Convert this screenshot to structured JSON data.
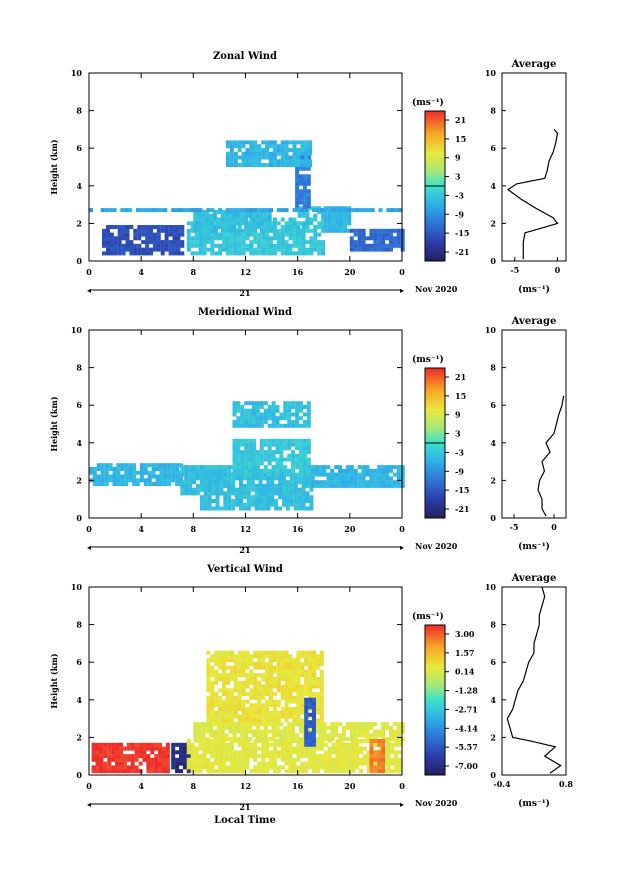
{
  "panels": [
    {
      "title": "Zonal Wind",
      "ylabel": "Height (km)",
      "y_ticks": [
        "0",
        "2",
        "4",
        "6",
        "8",
        "10"
      ],
      "x_ticks": [
        "0",
        "4",
        "8",
        "12",
        "16",
        "20",
        "0"
      ],
      "day_label": "21",
      "date_label": "Nov 2020",
      "cb_unit": "(ms⁻¹)",
      "cb_ticks": [
        "21",
        "15",
        "9",
        "3",
        "-3",
        "-9",
        "-15",
        "-21"
      ],
      "avg_title": "Average",
      "avg_xticks": [
        "-5",
        "0"
      ],
      "avg_xlabel": "(ms⁻¹)",
      "avg_yticks": [
        "0",
        "2",
        "4",
        "6",
        "8",
        "10"
      ]
    },
    {
      "title": "Meridional Wind",
      "ylabel": "Height (km)",
      "y_ticks": [
        "0",
        "2",
        "4",
        "6",
        "8",
        "10"
      ],
      "x_ticks": [
        "0",
        "4",
        "8",
        "12",
        "16",
        "20",
        "0"
      ],
      "day_label": "21",
      "date_label": "Nov 2020",
      "cb_unit": "(ms⁻¹)",
      "cb_ticks": [
        "21",
        "15",
        "9",
        "3",
        "-3",
        "-9",
        "-15",
        "-21"
      ],
      "avg_title": "Average",
      "avg_xticks": [
        "-5",
        "0"
      ],
      "avg_xlabel": "(ms⁻¹)",
      "avg_yticks": [
        "0",
        "2",
        "4",
        "6",
        "8",
        "10"
      ]
    },
    {
      "title": "Vertical Wind",
      "ylabel": "Height (km)",
      "y_ticks": [
        "0",
        "2",
        "4",
        "6",
        "8",
        "10"
      ],
      "x_ticks": [
        "0",
        "4",
        "8",
        "12",
        "16",
        "20",
        "0"
      ],
      "day_label": "21",
      "date_label": "Nov 2020",
      "xlabel": "Local Time",
      "cb_unit": "(ms⁻¹)",
      "cb_ticks": [
        "3.00",
        "1.57",
        "0.14",
        "-1.28",
        "-2.71",
        "-4.14",
        "-5.57",
        "-7.00"
      ],
      "avg_title": "Average",
      "avg_xticks": [
        "-0.4",
        "0.8"
      ],
      "avg_xlabel": "(ms⁻¹)",
      "avg_yticks": [
        "0",
        "2",
        "4",
        "6",
        "8",
        "10"
      ]
    }
  ],
  "chart_data": [
    {
      "type": "heatmap",
      "title": "Zonal Wind",
      "xlabel": "",
      "ylabel": "Height (km)",
      "xlim": [
        0,
        24
      ],
      "ylim": [
        0,
        10
      ],
      "colorbar_range": [
        -24,
        24
      ],
      "blocks": [
        {
          "t0": 1,
          "t1": 7,
          "h0": 0.3,
          "h1": 1.7,
          "v": -16
        },
        {
          "t0": 7.5,
          "t1": 16,
          "h0": 0.3,
          "h1": 2.3,
          "v": -3
        },
        {
          "t0": 8,
          "t1": 14,
          "h0": 1.5,
          "h1": 2.6,
          "v": -4
        },
        {
          "t0": 16,
          "t1": 18,
          "h0": 0.3,
          "h1": 2.8,
          "v": -3
        },
        {
          "t0": 18,
          "t1": 20,
          "h0": 1.5,
          "h1": 2.8,
          "v": -5
        },
        {
          "t0": 20,
          "t1": 24,
          "h0": 0.5,
          "h1": 1.6,
          "v": -13
        },
        {
          "t0": 0,
          "t1": 24,
          "h0": 2.6,
          "h1": 2.8,
          "v": -7
        },
        {
          "t0": 15.8,
          "t1": 16.8,
          "h0": 2.8,
          "h1": 6.0,
          "v": -11
        },
        {
          "t0": 10.5,
          "t1": 17,
          "h0": 5.0,
          "h1": 6.3,
          "v": -5
        }
      ],
      "profile": {
        "heights": [
          0.1,
          0.5,
          1.0,
          1.5,
          1.8,
          2.0,
          2.3,
          2.8,
          3.3,
          3.8,
          4.1,
          4.4,
          4.8,
          5.3,
          5.8,
          6.3,
          6.8,
          7.0
        ],
        "values": [
          -4,
          -4,
          -4,
          -3.8,
          -1.5,
          0,
          -0.5,
          -2.5,
          -4.3,
          -5.8,
          -4.8,
          -1.5,
          -1.2,
          -1,
          -0.5,
          -0.2,
          0,
          -0.4
        ]
      },
      "profile_xlim": [
        -6.5,
        1
      ]
    },
    {
      "type": "heatmap",
      "title": "Meridional Wind",
      "xlabel": "",
      "ylabel": "Height (km)",
      "xlim": [
        0,
        24
      ],
      "ylim": [
        0,
        10
      ],
      "colorbar_range": [
        -24,
        24
      ],
      "blocks": [
        {
          "t0": 0,
          "t1": 7,
          "h0": 1.7,
          "h1": 2.8,
          "v": -5
        },
        {
          "t0": 7,
          "t1": 11,
          "h0": 1.2,
          "h1": 2.8,
          "v": -4
        },
        {
          "t0": 8.5,
          "t1": 17,
          "h0": 0.4,
          "h1": 2.2,
          "v": -4
        },
        {
          "t0": 11,
          "t1": 17,
          "h0": 2.2,
          "h1": 4.2,
          "v": -3
        },
        {
          "t0": 17,
          "t1": 24,
          "h0": 1.6,
          "h1": 2.8,
          "v": -5
        },
        {
          "t0": 11,
          "t1": 17,
          "h0": 4.8,
          "h1": 6.2,
          "v": -4
        }
      ],
      "profile": {
        "heights": [
          0.1,
          0.5,
          1.0,
          1.5,
          2.0,
          2.5,
          3.0,
          3.5,
          4.0,
          4.5,
          5.0,
          5.5,
          6.0,
          6.5
        ],
        "values": [
          -1,
          -1.5,
          -1.5,
          -2,
          -1.8,
          -1.2,
          -1.5,
          -0.5,
          -1,
          0,
          0.3,
          0.6,
          1,
          1.2
        ]
      },
      "profile_xlim": [
        -6.5,
        1.5
      ]
    },
    {
      "type": "heatmap",
      "title": "Vertical Wind",
      "xlabel": "Local Time",
      "ylabel": "Height (km)",
      "xlim": [
        0,
        24
      ],
      "ylim": [
        0,
        10
      ],
      "colorbar_range": [
        -7.0,
        3.0
      ],
      "blocks": [
        {
          "t0": 0.2,
          "t1": 6,
          "h0": 0.1,
          "h1": 1.6,
          "v": 2.9
        },
        {
          "t0": 6.3,
          "t1": 7.5,
          "h0": 0.1,
          "h1": 1.6,
          "v": -6.5
        },
        {
          "t0": 7.5,
          "t1": 24,
          "h0": 0.1,
          "h1": 1.8,
          "v": 0.1
        },
        {
          "t0": 8,
          "t1": 24,
          "h0": 1.8,
          "h1": 2.8,
          "v": 0.0
        },
        {
          "t0": 9,
          "t1": 18,
          "h0": 2.8,
          "h1": 6.5,
          "v": 0.3
        },
        {
          "t0": 16.5,
          "t1": 17.2,
          "h0": 1.5,
          "h1": 4.0,
          "v": -5.0
        },
        {
          "t0": 21.5,
          "t1": 22.5,
          "h0": 0.1,
          "h1": 1.8,
          "v": 2.0
        }
      ],
      "profile": {
        "heights": [
          0.1,
          0.5,
          1.0,
          1.5,
          1.8,
          2.0,
          2.5,
          3.0,
          3.5,
          4.0,
          4.5,
          5.0,
          5.5,
          6.0,
          6.5,
          7.0,
          7.5,
          8.0,
          8.5,
          9.0,
          9.5,
          10.0
        ],
        "values": [
          0.5,
          0.7,
          0.4,
          0.6,
          0.15,
          -0.2,
          -0.25,
          -0.3,
          -0.2,
          -0.15,
          -0.1,
          0.0,
          0.05,
          0.1,
          0.2,
          0.2,
          0.25,
          0.3,
          0.3,
          0.35,
          0.4,
          0.35
        ]
      },
      "profile_xlim": [
        -0.4,
        0.8
      ]
    }
  ]
}
